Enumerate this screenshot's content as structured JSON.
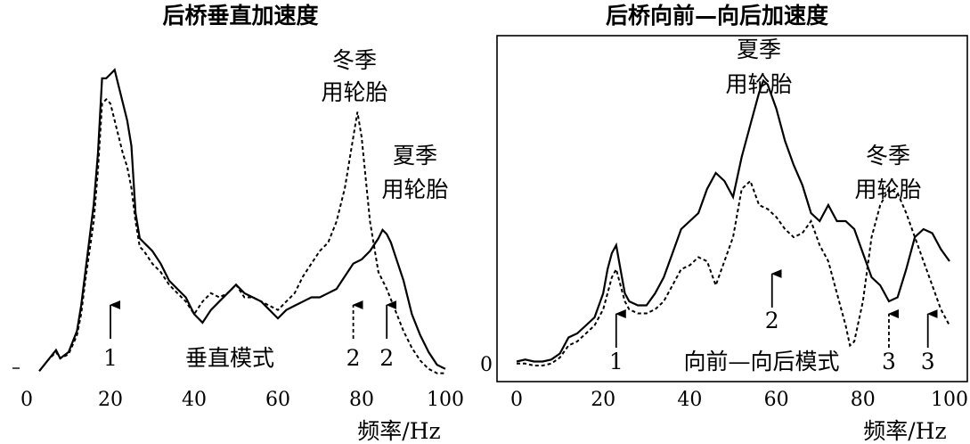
{
  "chart_data": [
    {
      "type": "line",
      "title": "后桥垂直加速度",
      "xlabel": "频率/Hz",
      "ylabel": "",
      "xlim": [
        0,
        100
      ],
      "xticks": [
        "0",
        "20",
        "40",
        "60",
        "80",
        "100"
      ],
      "grid": false,
      "series": [
        {
          "style": "solid",
          "label": "夏季\n用轮胎",
          "x": [
            3,
            5,
            7,
            8,
            10,
            12,
            13,
            14,
            16,
            17,
            18,
            19,
            20,
            21,
            22,
            23,
            24,
            25,
            26,
            27,
            28,
            30,
            32,
            34,
            36,
            38,
            40,
            42,
            44,
            46,
            48,
            50,
            52,
            54,
            56,
            58,
            60,
            62,
            64,
            66,
            68,
            70,
            72,
            74,
            76,
            78,
            80,
            82,
            84,
            85,
            86,
            87,
            88,
            90,
            92,
            94,
            96,
            98,
            100
          ],
          "y": [
            2.5,
            5,
            7.5,
            5.5,
            7,
            12,
            18,
            26,
            42,
            54,
            72,
            72,
            73,
            74,
            70,
            66,
            62,
            56,
            40,
            34,
            33,
            31,
            28,
            24,
            22,
            20,
            16,
            14,
            17,
            19,
            21,
            23,
            21,
            20,
            19,
            17,
            15,
            17,
            18,
            19,
            20,
            20,
            21,
            22,
            25,
            28,
            29,
            31,
            34,
            36,
            35,
            33,
            30,
            24,
            16,
            11,
            7,
            4,
            3
          ]
        },
        {
          "style": "dashed",
          "label": "冬季\n用轮胎",
          "x": [
            3,
            5,
            7,
            8,
            10,
            12,
            13,
            14,
            16,
            17,
            18,
            19,
            20,
            21,
            22,
            23,
            24,
            25,
            26,
            27,
            28,
            30,
            32,
            34,
            36,
            38,
            40,
            42,
            44,
            46,
            48,
            50,
            52,
            54,
            56,
            58,
            60,
            62,
            64,
            66,
            68,
            70,
            72,
            74,
            76,
            78,
            79,
            80,
            82,
            84,
            86,
            88,
            90,
            92,
            94,
            96,
            98,
            100
          ],
          "y": [
            2.5,
            5,
            7,
            5.5,
            6.5,
            11,
            16,
            24,
            38,
            50,
            66,
            67,
            66,
            62,
            58,
            54,
            51,
            46,
            38,
            32,
            31,
            28,
            26,
            23,
            21,
            19,
            16,
            19,
            21,
            20,
            21,
            23,
            20,
            20,
            19,
            18,
            17,
            19,
            21,
            25,
            28,
            31,
            33,
            38,
            46,
            58,
            64,
            58,
            38,
            26,
            22,
            17,
            12,
            8,
            5,
            3,
            2,
            2
          ]
        }
      ],
      "annotations": [
        {
          "text": "冬季\n用轮胎",
          "series": "dashed"
        },
        {
          "text": "夏季\n用轮胎",
          "series": "solid"
        },
        {
          "text": "垂直模式"
        },
        {
          "text": "1",
          "x": 20,
          "arrow": "solid"
        },
        {
          "text": "2",
          "x": 78,
          "arrow": "dashed"
        },
        {
          "text": "2",
          "x": 86,
          "arrow": "solid"
        }
      ]
    },
    {
      "type": "line",
      "title": "后桥向前—向后加速度",
      "xlabel": "频率/Hz",
      "ylabel": "",
      "xlim": [
        0,
        100
      ],
      "xticks": [
        "0",
        "20",
        "40",
        "60",
        "80",
        "100"
      ],
      "yticks": [
        "0"
      ],
      "grid": false,
      "series": [
        {
          "style": "solid",
          "label": "夏季\n用轮胎",
          "x": [
            0,
            2,
            4,
            6,
            8,
            10,
            12,
            14,
            16,
            18,
            20,
            21,
            22,
            23,
            24,
            25,
            26,
            28,
            30,
            32,
            34,
            36,
            38,
            40,
            42,
            44,
            46,
            48,
            50,
            52,
            54,
            56,
            57,
            58,
            60,
            62,
            64,
            66,
            68,
            70,
            72,
            74,
            76,
            78,
            80,
            82,
            84,
            86,
            88,
            90,
            92,
            94,
            96,
            98,
            100
          ],
          "y": [
            1,
            1.5,
            1,
            1,
            1.5,
            3,
            7,
            8,
            10,
            12,
            18,
            24,
            28,
            30,
            24,
            18,
            16,
            15,
            15,
            18,
            22,
            28,
            34,
            36,
            38,
            44,
            48,
            46,
            42,
            52,
            60,
            68,
            71,
            70,
            64,
            56,
            50,
            45,
            38,
            36,
            40,
            36,
            36,
            34,
            28,
            22,
            20,
            16,
            17,
            24,
            32,
            34,
            33,
            29,
            26
          ]
        },
        {
          "style": "dashed",
          "label": "冬季\n用轮胎",
          "x": [
            0,
            2,
            4,
            6,
            8,
            10,
            12,
            14,
            16,
            18,
            20,
            21,
            22,
            23,
            24,
            25,
            26,
            28,
            30,
            32,
            34,
            36,
            38,
            40,
            42,
            44,
            46,
            48,
            50,
            52,
            54,
            56,
            58,
            60,
            62,
            64,
            66,
            68,
            70,
            72,
            74,
            76,
            77,
            78,
            80,
            82,
            84,
            86,
            88,
            90,
            92,
            94,
            96,
            98,
            100
          ],
          "y": [
            0.5,
            0.5,
            0,
            0,
            0.5,
            2,
            5,
            6,
            8,
            10,
            14,
            18,
            22,
            24,
            20,
            16,
            14,
            13,
            13,
            14,
            16,
            20,
            24,
            25,
            27,
            26,
            20,
            26,
            32,
            44,
            46,
            40,
            39,
            37,
            34,
            32,
            33,
            36,
            30,
            26,
            18,
            10,
            5,
            6,
            16,
            32,
            40,
            44,
            43,
            38,
            32,
            26,
            20,
            14,
            10
          ]
        }
      ],
      "annotations": [
        {
          "text": "夏季\n用轮胎",
          "series": "solid"
        },
        {
          "text": "冬季\n用轮胎",
          "series": "dashed"
        },
        {
          "text": "向前—向后模式"
        },
        {
          "text": "1",
          "x": 23,
          "arrow": "solid"
        },
        {
          "text": "2",
          "x": 59,
          "arrow": "solid"
        },
        {
          "text": "3",
          "x": 86,
          "arrow": "dashed"
        },
        {
          "text": "3",
          "x": 95,
          "arrow": "solid"
        }
      ]
    }
  ]
}
